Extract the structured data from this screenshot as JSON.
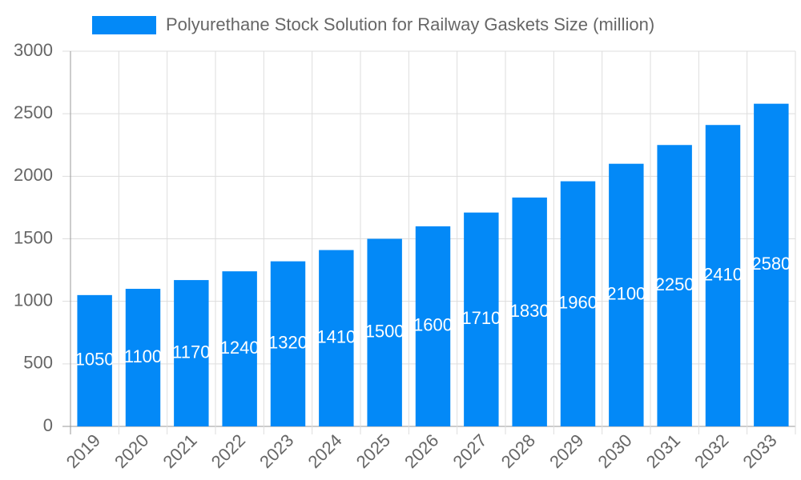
{
  "chart_data": {
    "type": "bar",
    "categories": [
      "2019",
      "2020",
      "2021",
      "2022",
      "2023",
      "2024",
      "2025",
      "2026",
      "2027",
      "2028",
      "2029",
      "2030",
      "2031",
      "2032",
      "2033"
    ],
    "series": [
      {
        "name": "Polyurethane Stock Solution for Railway Gaskets Size (million)",
        "color": "#0389f7",
        "values": [
          1050,
          1100,
          1170,
          1240,
          1320,
          1410,
          1500,
          1600,
          1710,
          1830,
          1960,
          2100,
          2250,
          2410,
          2580
        ]
      }
    ],
    "ylim": [
      0,
      3000
    ],
    "yticks": [
      0,
      500,
      1000,
      1500,
      2000,
      2500,
      3000
    ],
    "grid": true,
    "legend": "top",
    "data_labels": true
  }
}
